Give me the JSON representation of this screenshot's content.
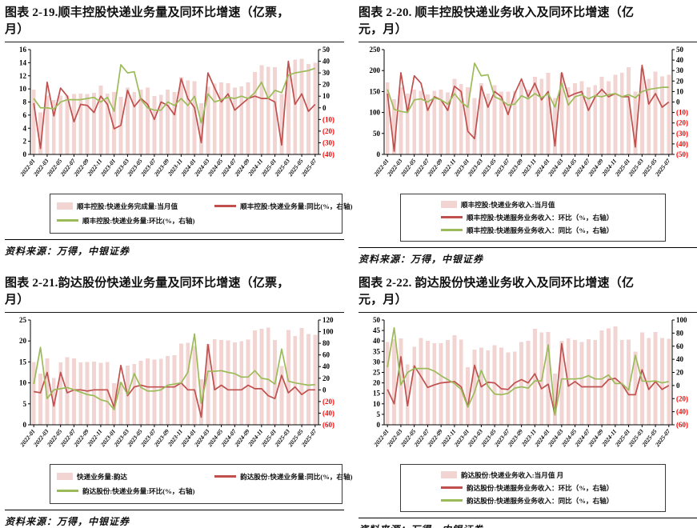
{
  "labels": {
    "source": "资料来源：万得，中银证券"
  },
  "colors": {
    "bar_fill": "#f2d5d3",
    "red_line": "#c0504d",
    "green_line": "#9bbb59",
    "negative_tick": "#ff0000",
    "axis": "#000000"
  },
  "x_months": [
    "2022-01",
    "2022-02",
    "2022-03",
    "2022-04",
    "2022-05",
    "2022-06",
    "2022-07",
    "2022-08",
    "2022-09",
    "2022-10",
    "2022-11",
    "2022-12",
    "2023-01",
    "2023-02",
    "2023-03",
    "2023-04",
    "2023-05",
    "2023-06",
    "2023-07",
    "2023-08",
    "2023-09",
    "2023-10",
    "2023-11",
    "2023-12",
    "2024-01",
    "2024-02",
    "2024-03",
    "2024-04",
    "2024-05",
    "2024-06",
    "2024-07",
    "2024-08",
    "2024-09",
    "2024-10",
    "2024-11",
    "2024-12",
    "2025-01",
    "2025-02",
    "2025-03",
    "2025-04",
    "2025-05",
    "2025-06",
    "2025-07"
  ],
  "x_tick_labels": [
    "2022-01",
    "2022-03",
    "2022-05",
    "2022-07",
    "2022-09",
    "2022-11",
    "2023-01",
    "2023-03",
    "2023-05",
    "2023-07",
    "2023-09",
    "2023-11",
    "2024-01",
    "2024-03",
    "2024-05",
    "2024-07",
    "2024-09",
    "2024-11",
    "2025-01",
    "2025-03",
    "2025-05",
    "2025-07"
  ],
  "chart_data": [
    {
      "type": "combo",
      "title": "图表 2-19.顺丰控股快递业务量及同环比增速（亿票，月）",
      "legend_layout": "two-column",
      "grid": false,
      "legend_position": "bottom",
      "left_axis": {
        "min": 0,
        "max": 16,
        "step": 2
      },
      "right_axis": {
        "min": -40,
        "max": 50,
        "step": 10,
        "negative_format": "parentheses-red"
      },
      "series": [
        {
          "name": "顺丰控股:快递业务完成量:当月值",
          "kind": "bar",
          "role": "bar-series",
          "axis": "left",
          "color": "#f2d5d3",
          "values": [
            9.9,
            6.4,
            9.0,
            8.3,
            9.0,
            9.0,
            9.2,
            9.3,
            9.2,
            9.4,
            10.5,
            9.3,
            9.5,
            8.8,
            10.2,
            9.5,
            9.9,
            10.2,
            8.9,
            9.1,
            9.9,
            9.5,
            11.8,
            11.3,
            11.2,
            7.8,
            10.3,
            10.8,
            11.0,
            10.9,
            10.2,
            10.4,
            11.0,
            12.6,
            13.6,
            13.4,
            13.3,
            9.2,
            13.3,
            14.5,
            14.6,
            13.8,
            14.0
          ]
        },
        {
          "name": "顺丰控股:快递业务量:同比(%，右轴)",
          "kind": "line",
          "role": "yoy-line",
          "axis": "right",
          "color": "#c0504d",
          "values": [
            4,
            -35,
            22,
            -7,
            17,
            10,
            -12,
            3,
            2,
            -4,
            10,
            3,
            -18,
            -15,
            15,
            1,
            8,
            3,
            -10,
            5,
            2,
            -6,
            25,
            8,
            0,
            -30,
            30,
            17,
            5,
            12,
            -2,
            3,
            8,
            10,
            8,
            8,
            5,
            -32,
            40,
            3,
            12,
            -3,
            3
          ]
        },
        {
          "name": "顺丰控股:快递业务量:环比(%，右轴)",
          "kind": "line",
          "role": "mom-line",
          "axis": "right",
          "color": "#9bbb59",
          "values": [
            8,
            0,
            0,
            -1,
            5,
            7,
            7,
            7,
            8,
            9,
            5,
            9,
            -3,
            37,
            30,
            31,
            7,
            0,
            -2,
            -2,
            5,
            2,
            8,
            2,
            10,
            -13,
            12,
            5,
            7,
            9,
            8,
            10,
            8,
            13,
            22,
            8,
            15,
            13,
            28,
            30,
            31,
            32,
            34
          ]
        }
      ]
    },
    {
      "type": "combo",
      "title": "图表 2-20. 顺丰控股快递业务收入及同环比增速（亿元，月）",
      "legend_layout": "stacked",
      "grid": false,
      "legend_position": "bottom",
      "left_axis": {
        "min": 0,
        "max": 250,
        "step": 50
      },
      "right_axis": {
        "min": -50,
        "max": 50,
        "step": 10,
        "negative_format": "parentheses-red"
      },
      "series": [
        {
          "name": "顺丰控股:快递业务收入:当月值",
          "kind": "bar",
          "role": "bar-series",
          "axis": "left",
          "color": "#f2d5d3",
          "values": [
            172,
            132,
            160,
            145,
            155,
            152,
            143,
            152,
            155,
            148,
            180,
            168,
            160,
            135,
            170,
            145,
            165,
            150,
            150,
            152,
            170,
            155,
            185,
            180,
            195,
            135,
            195,
            160,
            170,
            175,
            160,
            165,
            185,
            175,
            190,
            195,
            208,
            150,
            205,
            180,
            198,
            186,
            190
          ]
        },
        {
          "name": "顺丰控股:快递服务业务收入：环比（%，右轴）",
          "kind": "line",
          "role": "mom-line",
          "axis": "right",
          "color": "#c0504d",
          "values": [
            8,
            -47,
            28,
            -10,
            25,
            18,
            -8,
            5,
            2,
            -8,
            15,
            10,
            -28,
            -35,
            15,
            -5,
            10,
            5,
            -12,
            8,
            22,
            5,
            18,
            2,
            10,
            -42,
            28,
            5,
            8,
            10,
            -8,
            5,
            12,
            5,
            8,
            5,
            5,
            -43,
            35,
            -2,
            8,
            -5,
            0
          ]
        },
        {
          "name": "顺丰控股:快递服务业务收入：同比（%，右轴）",
          "kind": "line",
          "role": "yoy-line",
          "axis": "right",
          "color": "#9bbb59",
          "values": [
            12,
            -7,
            -9,
            -10,
            2,
            3,
            0,
            4,
            2,
            -2,
            8,
            0,
            -5,
            37,
            25,
            26,
            5,
            2,
            -3,
            -2,
            6,
            3,
            8,
            4,
            8,
            -5,
            18,
            -3,
            5,
            7,
            3,
            6,
            5,
            7,
            8,
            5,
            7,
            4,
            10,
            12,
            13,
            14,
            14
          ]
        }
      ]
    },
    {
      "type": "combo",
      "title": "图表 2-21.韵达股份快递业务量及同环比增速（亿票，月）",
      "legend_layout": "two-column",
      "grid": false,
      "legend_position": "bottom",
      "left_axis": {
        "min": 0,
        "max": 25,
        "step": 5
      },
      "right_axis": {
        "min": -60,
        "max": 120,
        "step": 20,
        "negative_format": "parentheses-red"
      },
      "series": [
        {
          "name": "快递业务量:韵达",
          "kind": "bar",
          "role": "bar-series",
          "axis": "left",
          "color": "#f2d5d3",
          "values": [
            15.0,
            12.2,
            15.8,
            11.2,
            14.9,
            16.1,
            15.8,
            14.9,
            15.0,
            15.1,
            14.8,
            15.0,
            9.9,
            10.1,
            14.1,
            14.5,
            15.3,
            15.8,
            15.6,
            15.7,
            16.4,
            16.6,
            19.4,
            19.6,
            18.8,
            10.9,
            19.3,
            20.4,
            20.2,
            20.1,
            19.7,
            19.9,
            20.3,
            22.5,
            22.9,
            23.2,
            20.2,
            14.0,
            22.6,
            21.2,
            23.1,
            21.7,
            21.5
          ]
        },
        {
          "name": "韵达股份:快递业务量:同比(%，右轴)",
          "kind": "line",
          "role": "yoy-line",
          "axis": "right",
          "color": "#c0504d",
          "values": [
            -3,
            -5,
            30,
            -28,
            30,
            -5,
            0,
            0,
            -2,
            0,
            0,
            0,
            -30,
            42,
            -10,
            5,
            8,
            5,
            5,
            5,
            5,
            5,
            12,
            0,
            0,
            -47,
            78,
            0,
            8,
            0,
            0,
            0,
            8,
            2,
            2,
            -10,
            -15,
            25,
            -5,
            5,
            -8,
            0,
            0
          ]
        },
        {
          "name": "韵达股份:快递业务量:环比(%，右轴)",
          "kind": "line",
          "role": "mom-line",
          "axis": "right",
          "color": "#9bbb59",
          "values": [
            10,
            73,
            -15,
            0,
            2,
            4,
            0,
            -4,
            -8,
            -10,
            -17,
            -20,
            -34,
            13,
            -8,
            28,
            4,
            -2,
            -2,
            0,
            8,
            10,
            12,
            30,
            96,
            -23,
            32,
            32,
            33,
            30,
            28,
            22,
            22,
            33,
            20,
            18,
            10,
            70,
            15,
            12,
            10,
            8,
            9
          ]
        }
      ]
    },
    {
      "type": "combo",
      "title": "图表 2-22. 韵达股份快递业务收入及同环比增速（亿元，月）",
      "legend_layout": "stacked",
      "grid": false,
      "legend_position": "bottom",
      "left_axis": {
        "min": 0,
        "max": 50,
        "step": 5
      },
      "right_axis": {
        "min": -60,
        "max": 100,
        "step": 20,
        "negative_format": "parentheses-red"
      },
      "series": [
        {
          "name": "韵达股份:快递业务收入:当月值 月",
          "kind": "bar",
          "role": "bar-series",
          "axis": "left",
          "color": "#f2d5d3",
          "values": [
            39.5,
            40.8,
            41.2,
            28.8,
            37.2,
            41.5,
            40.0,
            38.9,
            39.0,
            40.5,
            42.7,
            40.6,
            27.5,
            35.8,
            36.8,
            35.5,
            38.0,
            36.8,
            34.5,
            35.0,
            39.5,
            40.0,
            45.8,
            44.0,
            44.3,
            24.5,
            40.0,
            41.3,
            40.5,
            39.5,
            40.8,
            40.5,
            45.0,
            46.0,
            47.0,
            40.5,
            40.7,
            35.0,
            44.0,
            41.5,
            44.3,
            41.5,
            41.0
          ]
        },
        {
          "name": "韵达股份:快递服务业务收入：环比（%，右轴）",
          "kind": "line",
          "role": "mom-line",
          "axis": "right",
          "color": "#c0504d",
          "values": [
            -6,
            -28,
            44,
            -31,
            30,
            14,
            -3,
            1,
            4,
            5,
            6,
            -2,
            -32,
            31,
            -2,
            5,
            4,
            -5,
            -6,
            4,
            9,
            4,
            18,
            -5,
            2,
            -45,
            64,
            -1,
            6,
            -2,
            -2,
            -2,
            -2,
            9,
            11,
            2,
            -14,
            -14,
            24,
            -6,
            6,
            -6,
            0
          ]
        },
        {
          "name": "韵达股份:快递服务业务收入：同比（%，右轴）",
          "kind": "line",
          "role": "yoy-line",
          "axis": "right",
          "color": "#9bbb59",
          "values": [
            28,
            88,
            1,
            20,
            26,
            26,
            26,
            22,
            15,
            9,
            3,
            -6,
            -33,
            -10,
            23,
            -1,
            -13,
            -14,
            -12,
            -4,
            -2,
            -4,
            7,
            7,
            62,
            -45,
            10,
            10,
            10,
            11,
            15,
            10,
            10,
            16,
            3,
            3,
            -7,
            46,
            7,
            6,
            7,
            4,
            6
          ]
        }
      ]
    }
  ]
}
